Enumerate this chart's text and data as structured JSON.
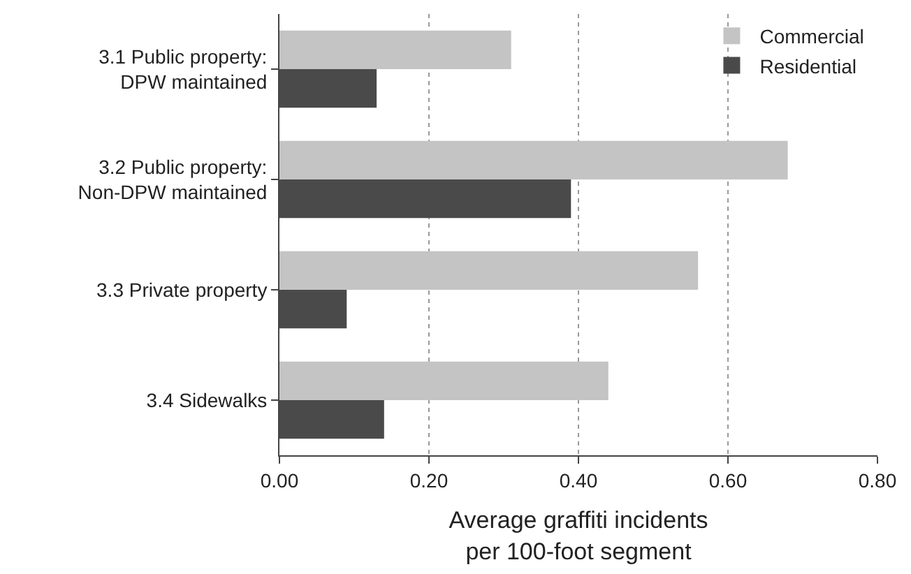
{
  "chart_data": {
    "type": "bar",
    "orientation": "horizontal",
    "categories": [
      "3.1 Public property:\nDPW maintained",
      "3.2 Public property:\nNon-DPW maintained",
      "3.3 Private property",
      "3.4 Sidewalks"
    ],
    "series": [
      {
        "name": "Commercial",
        "color": "#c4c4c4",
        "values": [
          0.31,
          0.68,
          0.56,
          0.44
        ]
      },
      {
        "name": "Residential",
        "color": "#4a4a4a",
        "values": [
          0.13,
          0.39,
          0.09,
          0.14
        ]
      }
    ],
    "xlabel": "Average graffiti incidents\nper 100-foot segment",
    "xlim": [
      0,
      0.8
    ],
    "xticks": [
      {
        "value": 0,
        "label": "0.00"
      },
      {
        "value": 0.2,
        "label": "0.20"
      },
      {
        "value": 0.4,
        "label": "0.40"
      },
      {
        "value": 0.6,
        "label": "0.60"
      },
      {
        "value": 0.8,
        "label": "0.80"
      }
    ],
    "grid": "x",
    "legend": "top right"
  }
}
